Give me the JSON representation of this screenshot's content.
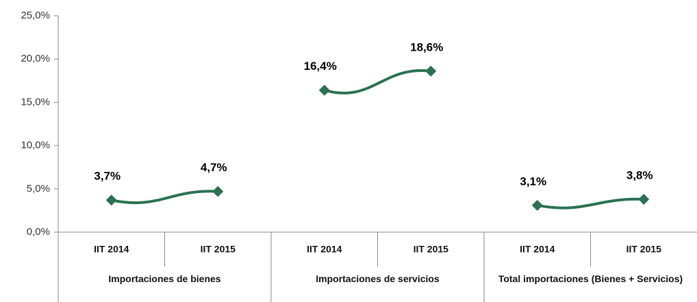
{
  "chart_data": {
    "type": "line",
    "color": "#2b7152",
    "ylim": [
      0,
      25
    ],
    "yticks": [
      {
        "value": 0,
        "label": "0,0%"
      },
      {
        "value": 5,
        "label": "5,0%"
      },
      {
        "value": 10,
        "label": "10,0%"
      },
      {
        "value": 15,
        "label": "15,0%"
      },
      {
        "value": 20,
        "label": "20,0%"
      },
      {
        "value": 25,
        "label": "25,0%"
      }
    ],
    "groups": [
      {
        "label": "Importaciones de bienes",
        "categories": [
          "IIT 2014",
          "IIT 2015"
        ],
        "values": [
          3.7,
          4.7
        ],
        "value_labels": [
          "3,7%",
          "4,7%"
        ]
      },
      {
        "label": "Importaciones de servicios",
        "categories": [
          "IIT 2014",
          "IIT 2015"
        ],
        "values": [
          16.4,
          18.6
        ],
        "value_labels": [
          "16,4%",
          "18,6%"
        ]
      },
      {
        "label": "Total importaciones (Bienes + Servicios)",
        "categories": [
          "IIT 2014",
          "IIT 2015"
        ],
        "values": [
          3.1,
          3.8
        ],
        "value_labels": [
          "3,1%",
          "3,8%"
        ]
      }
    ]
  }
}
